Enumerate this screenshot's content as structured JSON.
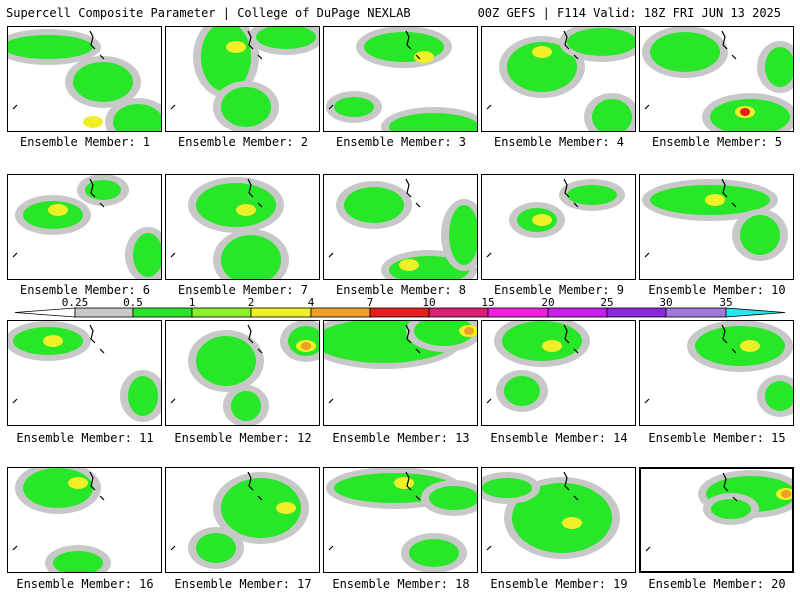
{
  "header": {
    "left": "Supercell Composite Parameter | College of DuPage NEXLAB",
    "right": "00Z GEFS | F114 Valid: 18Z FRI JUN 13 2025"
  },
  "legend": {
    "ticks": [
      "0.25",
      "0.5",
      "1",
      "2",
      "4",
      "7",
      "10",
      "15",
      "20",
      "25",
      "30",
      "35"
    ],
    "colors": [
      "#c8c8c8",
      "#28e628",
      "#8cf028",
      "#f0f028",
      "#f0a028",
      "#e61e1e",
      "#dc1e78",
      "#f01edc",
      "#c81ef0",
      "#8c28dc",
      "#a078dc",
      "#28e6f0"
    ]
  },
  "members": [
    {
      "label": "Ensemble Member: 1"
    },
    {
      "label": "Ensemble Member: 2"
    },
    {
      "label": "Ensemble Member: 3"
    },
    {
      "label": "Ensemble Member: 4"
    },
    {
      "label": "Ensemble Member: 5"
    },
    {
      "label": "Ensemble Member: 6"
    },
    {
      "label": "Ensemble Member: 7"
    },
    {
      "label": "Ensemble Member: 8"
    },
    {
      "label": "Ensemble Member: 9"
    },
    {
      "label": "Ensemble Member: 10"
    },
    {
      "label": "Ensemble Member: 11"
    },
    {
      "label": "Ensemble Member: 12"
    },
    {
      "label": "Ensemble Member: 13"
    },
    {
      "label": "Ensemble Member: 14"
    },
    {
      "label": "Ensemble Member: 15"
    },
    {
      "label": "Ensemble Member: 16"
    },
    {
      "label": "Ensemble Member: 17"
    },
    {
      "label": "Ensemble Member: 18"
    },
    {
      "label": "Ensemble Member: 19"
    },
    {
      "label": "Ensemble Member: 20"
    }
  ]
}
